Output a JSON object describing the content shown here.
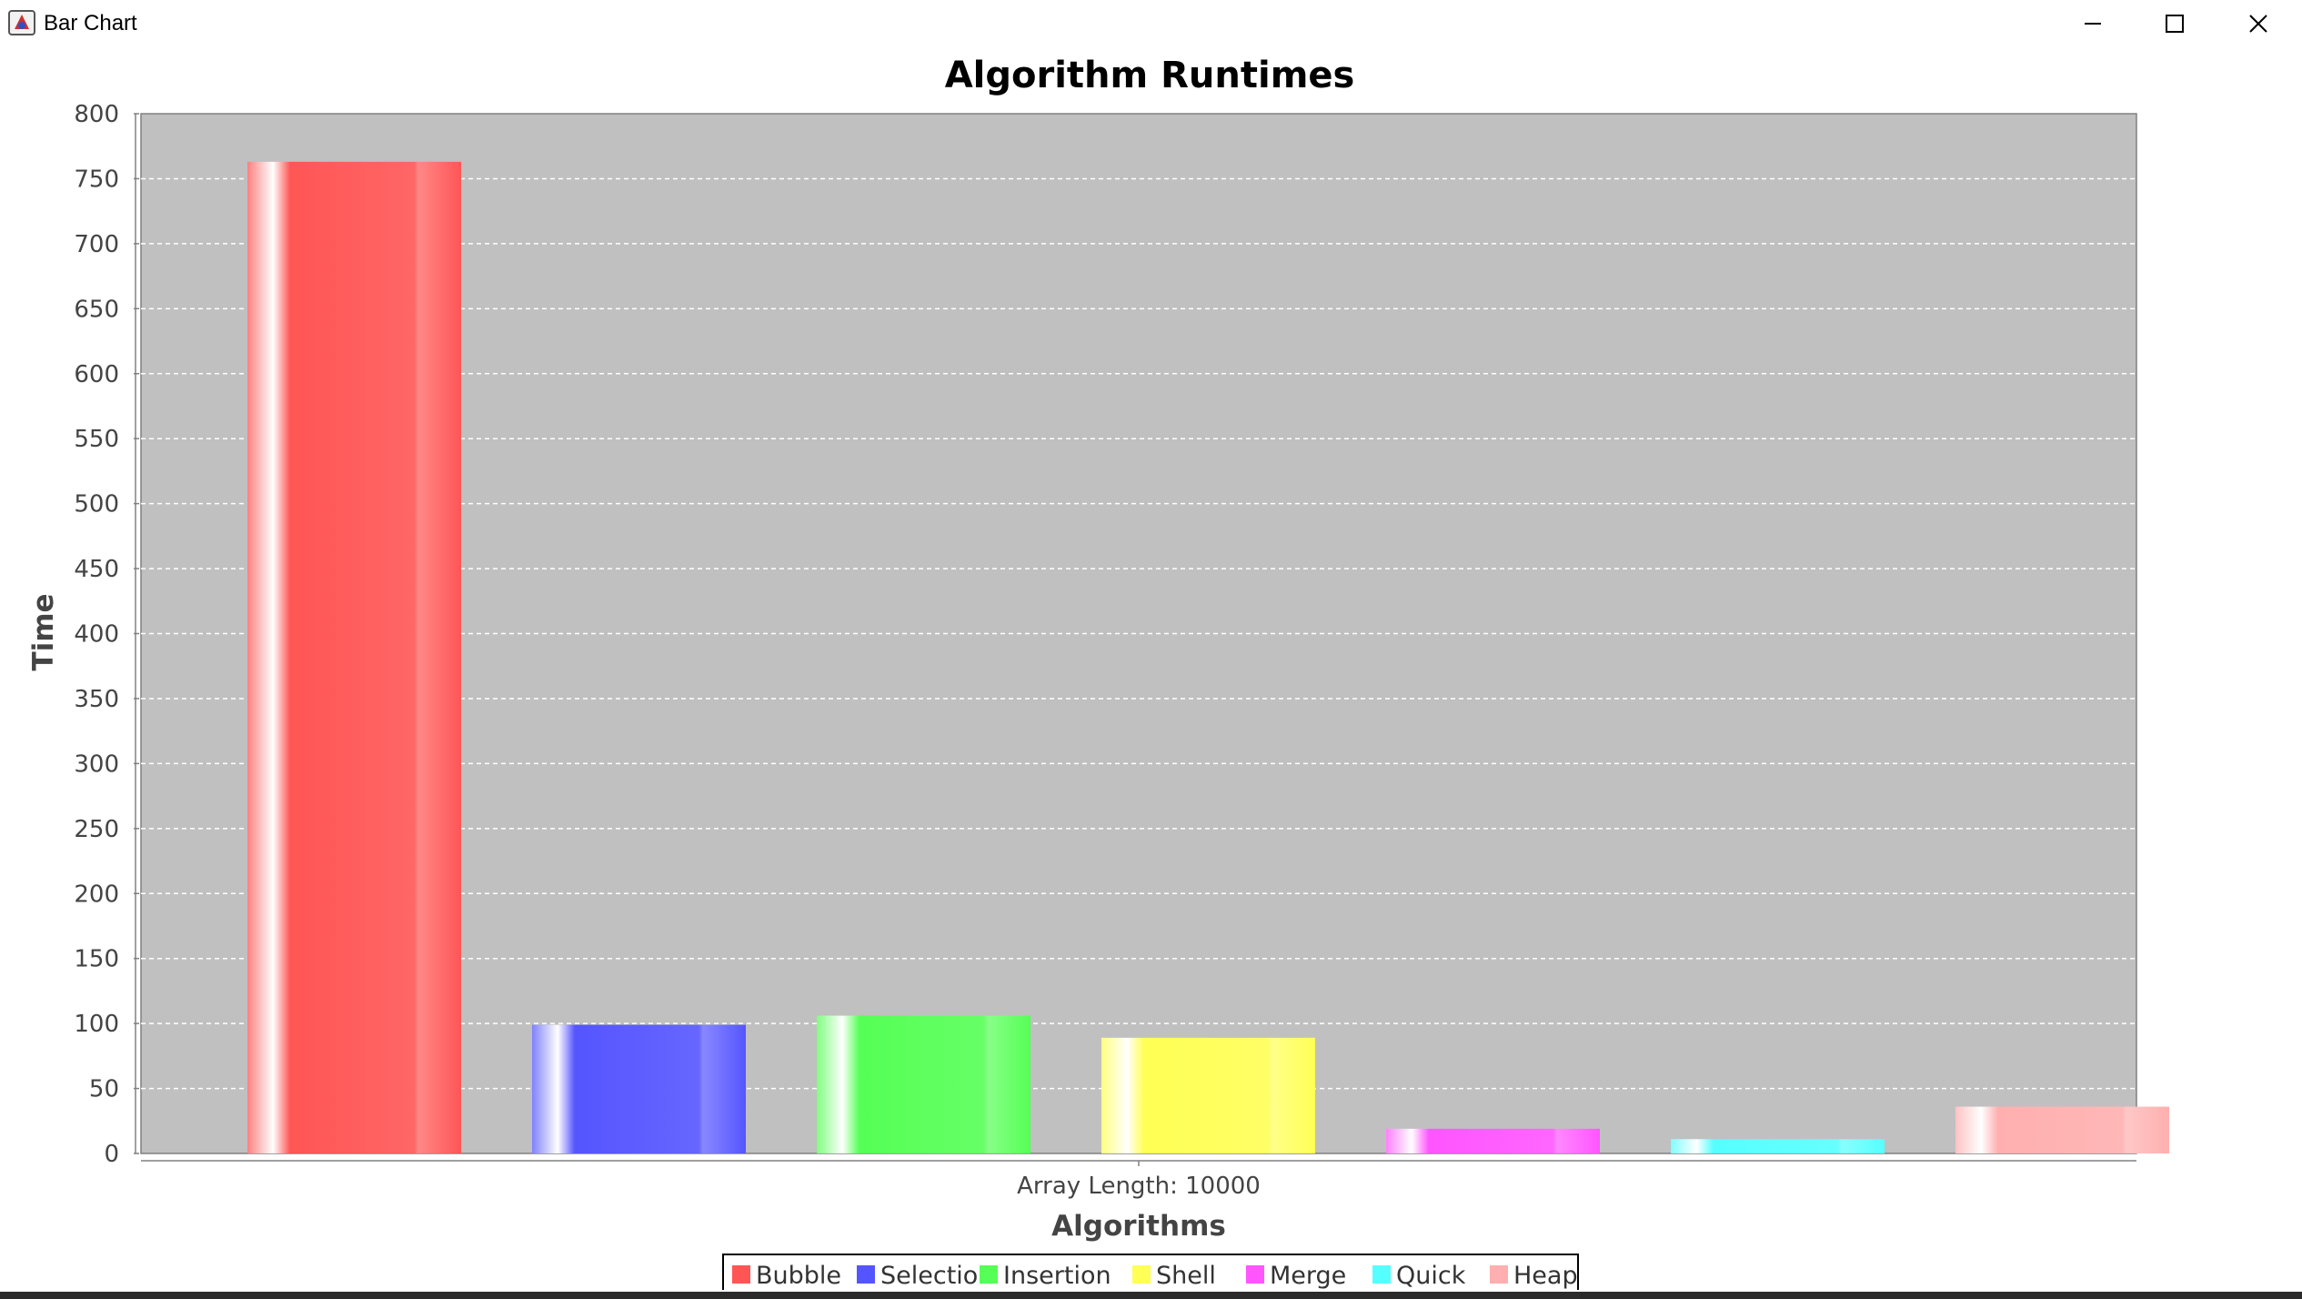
{
  "window": {
    "title": "Bar Chart",
    "icon": "java-app-icon",
    "controls": [
      "minimize-icon",
      "maximize-icon",
      "close-icon"
    ]
  },
  "chart_data": {
    "type": "bar",
    "title": "Algorithm Runtimes",
    "xlabel": "Algorithms",
    "ylabel": "Time",
    "categories": [
      "Array Length: 10000"
    ],
    "series": [
      {
        "name": "Bubble",
        "values": [
          763
        ],
        "color": "#ff5555"
      },
      {
        "name": "Selection",
        "values": [
          99
        ],
        "color": "#5555ff"
      },
      {
        "name": "Insertion",
        "values": [
          106
        ],
        "color": "#55ff55"
      },
      {
        "name": "Shell",
        "values": [
          89
        ],
        "color": "#ffff55"
      },
      {
        "name": "Merge",
        "values": [
          19
        ],
        "color": "#ff55ff"
      },
      {
        "name": "Quick",
        "values": [
          11
        ],
        "color": "#55ffff"
      },
      {
        "name": "Heap",
        "values": [
          36
        ],
        "color": "#ffafaf"
      }
    ],
    "ylim": [
      0,
      800
    ],
    "yticks": [
      0,
      50,
      100,
      150,
      200,
      250,
      300,
      350,
      400,
      450,
      500,
      550,
      600,
      650,
      700,
      750,
      800
    ],
    "grid": true,
    "legend": "bottom-center",
    "plot_background": "#c0c0c0"
  }
}
